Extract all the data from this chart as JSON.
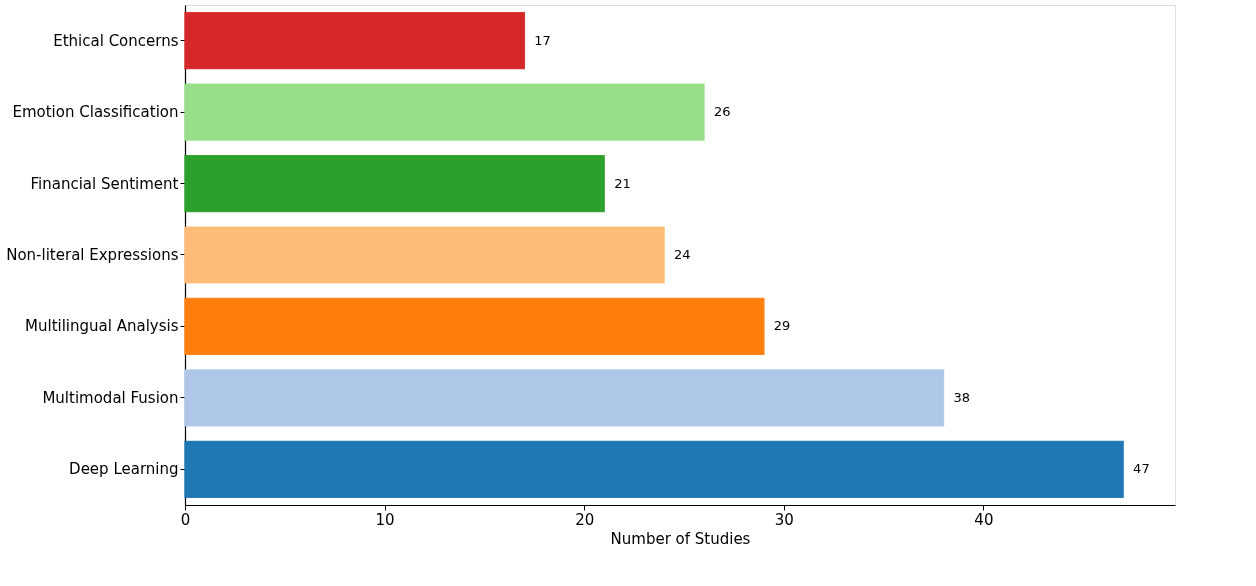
{
  "chart_data": {
    "type": "bar",
    "orientation": "horizontal",
    "xlabel": "Number of Studies",
    "categories": [
      "Ethical Concerns",
      "Emotion Classification",
      "Financial Sentiment",
      "Non-literal Expressions",
      "Multilingual Analysis",
      "Multimodal Fusion",
      "Deep Learning"
    ],
    "values": [
      17,
      26,
      21,
      24,
      29,
      38,
      47
    ],
    "colors": [
      "#d62728",
      "#98df8a",
      "#2ca02c",
      "#ffbb78",
      "#ff7f0e",
      "#aec7e8",
      "#1f77b4"
    ],
    "xlim": [
      0,
      49.6
    ],
    "xticks": [
      0,
      10,
      20,
      30,
      40
    ],
    "grid": false,
    "data_labels": true
  }
}
